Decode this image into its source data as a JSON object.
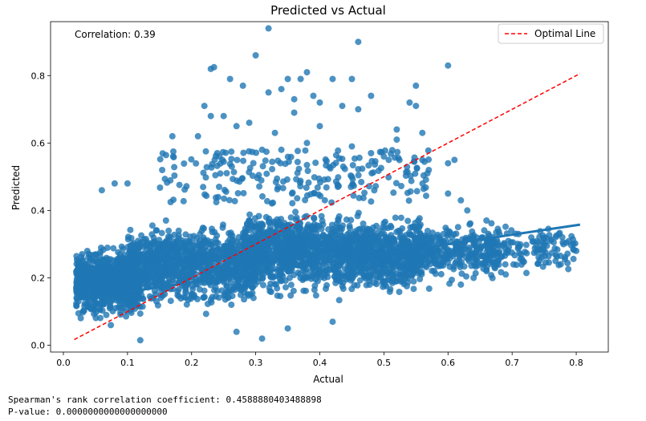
{
  "chart_data": {
    "type": "scatter",
    "title": "Predicted vs Actual",
    "xlabel": "Actual",
    "ylabel": "Predicted",
    "xlim": [
      -0.02,
      0.85
    ],
    "ylim": [
      -0.02,
      0.96
    ],
    "xticks": [
      "0.0",
      "0.1",
      "0.2",
      "0.3",
      "0.4",
      "0.5",
      "0.6",
      "0.7",
      "0.8"
    ],
    "yticks": [
      "0.0",
      "0.2",
      "0.4",
      "0.6",
      "0.8"
    ],
    "annotation": "Correlation: 0.39",
    "legend": {
      "position": "top-right",
      "entries": [
        {
          "label": "Optimal Line",
          "style": "dashed",
          "color": "#ff0000"
        }
      ]
    },
    "optimal_line": {
      "x": [
        0.017,
        0.806
      ],
      "y": [
        0.017,
        0.806
      ]
    },
    "regression_line": {
      "x": [
        0.017,
        0.806
      ],
      "y": [
        0.135,
        0.358
      ]
    },
    "point_color": "#1f77b4",
    "outlier_points": [
      {
        "x": 0.32,
        "y": 0.94
      },
      {
        "x": 0.46,
        "y": 0.9
      },
      {
        "x": 0.3,
        "y": 0.86
      },
      {
        "x": 0.23,
        "y": 0.82
      },
      {
        "x": 0.235,
        "y": 0.825
      },
      {
        "x": 0.26,
        "y": 0.79
      },
      {
        "x": 0.37,
        "y": 0.79
      },
      {
        "x": 0.38,
        "y": 0.81
      },
      {
        "x": 0.35,
        "y": 0.79
      },
      {
        "x": 0.42,
        "y": 0.79
      },
      {
        "x": 0.45,
        "y": 0.79
      },
      {
        "x": 0.55,
        "y": 0.77
      },
      {
        "x": 0.6,
        "y": 0.83
      },
      {
        "x": 0.28,
        "y": 0.77
      },
      {
        "x": 0.32,
        "y": 0.75
      },
      {
        "x": 0.34,
        "y": 0.76
      },
      {
        "x": 0.39,
        "y": 0.74
      },
      {
        "x": 0.48,
        "y": 0.74
      },
      {
        "x": 0.36,
        "y": 0.73
      },
      {
        "x": 0.4,
        "y": 0.72
      },
      {
        "x": 0.22,
        "y": 0.71
      },
      {
        "x": 0.435,
        "y": 0.71
      },
      {
        "x": 0.46,
        "y": 0.7
      },
      {
        "x": 0.54,
        "y": 0.72
      },
      {
        "x": 0.55,
        "y": 0.71
      },
      {
        "x": 0.23,
        "y": 0.68
      },
      {
        "x": 0.25,
        "y": 0.68
      },
      {
        "x": 0.36,
        "y": 0.69
      },
      {
        "x": 0.29,
        "y": 0.66
      },
      {
        "x": 0.27,
        "y": 0.65
      },
      {
        "x": 0.4,
        "y": 0.65
      },
      {
        "x": 0.52,
        "y": 0.64
      },
      {
        "x": 0.56,
        "y": 0.63
      },
      {
        "x": 0.33,
        "y": 0.63
      },
      {
        "x": 0.21,
        "y": 0.62
      },
      {
        "x": 0.52,
        "y": 0.61
      },
      {
        "x": 0.61,
        "y": 0.55
      },
      {
        "x": 0.57,
        "y": 0.52
      },
      {
        "x": 0.6,
        "y": 0.54
      },
      {
        "x": 0.56,
        "y": 0.55
      },
      {
        "x": 0.17,
        "y": 0.62
      },
      {
        "x": 0.38,
        "y": 0.6
      },
      {
        "x": 0.45,
        "y": 0.59
      },
      {
        "x": 0.31,
        "y": 0.58
      },
      {
        "x": 0.34,
        "y": 0.58
      },
      {
        "x": 0.24,
        "y": 0.57
      },
      {
        "x": 0.48,
        "y": 0.57
      },
      {
        "x": 0.5,
        "y": 0.56
      },
      {
        "x": 0.31,
        "y": 0.02
      },
      {
        "x": 0.35,
        "y": 0.05
      },
      {
        "x": 0.27,
        "y": 0.04
      },
      {
        "x": 0.42,
        "y": 0.07
      },
      {
        "x": 0.12,
        "y": 0.015
      },
      {
        "x": 0.6,
        "y": 0.45
      },
      {
        "x": 0.62,
        "y": 0.43
      },
      {
        "x": 0.63,
        "y": 0.4
      },
      {
        "x": 0.66,
        "y": 0.37
      },
      {
        "x": 0.71,
        "y": 0.33
      },
      {
        "x": 0.73,
        "y": 0.32
      },
      {
        "x": 0.76,
        "y": 0.31
      },
      {
        "x": 0.78,
        "y": 0.3
      },
      {
        "x": 0.8,
        "y": 0.28
      },
      {
        "x": 0.69,
        "y": 0.21
      },
      {
        "x": 0.66,
        "y": 0.22
      },
      {
        "x": 0.64,
        "y": 0.2
      },
      {
        "x": 0.62,
        "y": 0.18
      },
      {
        "x": 0.06,
        "y": 0.46
      },
      {
        "x": 0.08,
        "y": 0.48
      },
      {
        "x": 0.1,
        "y": 0.48
      },
      {
        "x": 0.16,
        "y": 0.37
      },
      {
        "x": 0.02,
        "y": 0.17
      },
      {
        "x": 0.03,
        "y": 0.25
      }
    ]
  },
  "console_output": {
    "spearman_line": "Spearman's rank correlation coefficient: 0.4588880403488898",
    "pvalue_line": "P-value: 0.0000000000000000000"
  }
}
